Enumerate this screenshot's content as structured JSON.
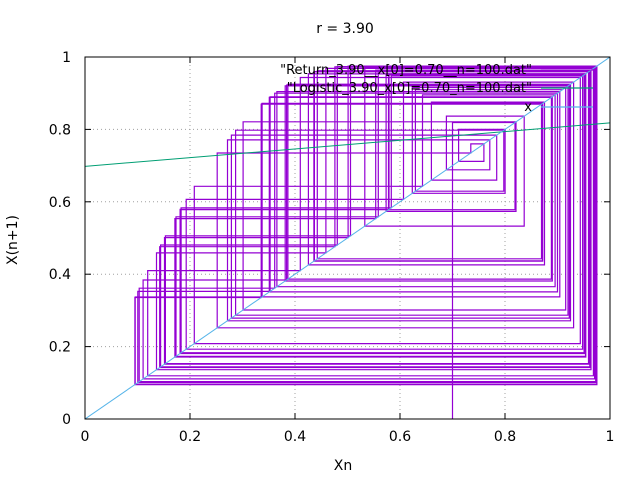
{
  "chart_data": {
    "type": "line",
    "title": "r = 3.90",
    "xlabel": "Xn",
    "ylabel": "X(n+1)",
    "xlim": [
      0,
      1
    ],
    "ylim": [
      0,
      1
    ],
    "xticks": [
      0,
      0.2,
      0.4,
      0.6,
      0.8,
      1
    ],
    "yticks": [
      0,
      0.2,
      0.4,
      0.6,
      0.8,
      1
    ],
    "xtick_labels": [
      "0",
      "0.2",
      "0.4",
      "0.6",
      "0.8",
      "1"
    ],
    "ytick_labels": [
      "0",
      "0.2",
      "0.4",
      "0.6",
      "0.8",
      "1"
    ],
    "grid": true,
    "legend_position": "top-right",
    "r": 3.9,
    "x0": 0.7,
    "n": 100,
    "series": [
      {
        "name": "\"Return_3.90__x[0]=0.70__n=100.dat\"",
        "kind": "cobweb",
        "color": "#9400d3"
      },
      {
        "name": "\"Logistic_3.90_x[0]=0.70_n=100.dat\"",
        "kind": "line",
        "points": [
          [
            0,
            0.698
          ],
          [
            1,
            0.818
          ]
        ],
        "color": "#009e73"
      },
      {
        "name": "x",
        "kind": "line",
        "points": [
          [
            0,
            0
          ],
          [
            1,
            1
          ]
        ],
        "color": "#56b4e9"
      }
    ]
  }
}
